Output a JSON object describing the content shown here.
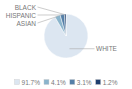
{
  "chart_data": {
    "type": "pie",
    "categories": [
      "WHITE",
      "ASIAN",
      "HISPANIC",
      "BLACK"
    ],
    "values": [
      91.7,
      4.1,
      3.1,
      1.2
    ],
    "value_labels": [
      "91.7%",
      "4.1%",
      "3.1%",
      "1.2%"
    ],
    "colors": [
      "#dce6f1",
      "#8ab4cc",
      "#5580a8",
      "#1e3f6e"
    ],
    "legend": "bottom"
  }
}
